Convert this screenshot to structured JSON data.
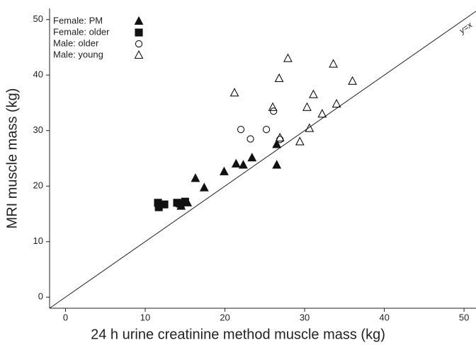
{
  "chart_data": {
    "type": "scatter",
    "x_label": "24 h urine creatinine method muscle mass (kg)",
    "y_label": "MRI muscle mass (kg)",
    "annotation": "y=x",
    "xlim": [
      -2,
      51.5
    ],
    "ylim": [
      -2,
      52
    ],
    "xticks": [
      0,
      10,
      20,
      30,
      40,
      50
    ],
    "yticks": [
      0,
      10,
      20,
      30,
      40,
      50
    ],
    "legend": "top-left",
    "series": [
      {
        "name": "Female: PM",
        "color": "#111111",
        "marker": "triangle",
        "filled": true,
        "x": [
          14.4,
          15.3,
          16.3,
          17.4,
          19.9,
          21.4,
          22.3,
          23.4,
          26.5,
          26.5,
          14.5
        ],
        "values": [
          16.8,
          17.0,
          21.4,
          19.7,
          22.6,
          24.0,
          23.8,
          25.1,
          23.8,
          27.5,
          16.4
        ]
      },
      {
        "name": "Female: older",
        "color": "#111111",
        "marker": "square",
        "filled": true,
        "x": [
          11.6,
          11.7,
          12.4,
          14.0,
          15.0
        ],
        "values": [
          17.0,
          16.2,
          16.7,
          17.0,
          17.2
        ]
      },
      {
        "name": "Male: older",
        "color": "#111111",
        "marker": "circle",
        "filled": false,
        "x": [
          22.0,
          23.2,
          25.2,
          26.1,
          26.9
        ],
        "values": [
          30.2,
          28.5,
          30.2,
          33.5,
          28.4
        ]
      },
      {
        "name": "Male: young",
        "color": "#111111",
        "marker": "triangle",
        "filled": false,
        "x": [
          21.2,
          26.0,
          26.8,
          27.9,
          29.4,
          30.3,
          30.6,
          31.1,
          32.2,
          34.0,
          33.6,
          36.0,
          26.9
        ],
        "values": [
          36.8,
          34.2,
          39.4,
          43.0,
          28.0,
          34.2,
          30.4,
          36.5,
          33.0,
          34.8,
          42.0,
          38.9,
          28.7
        ]
      }
    ]
  }
}
